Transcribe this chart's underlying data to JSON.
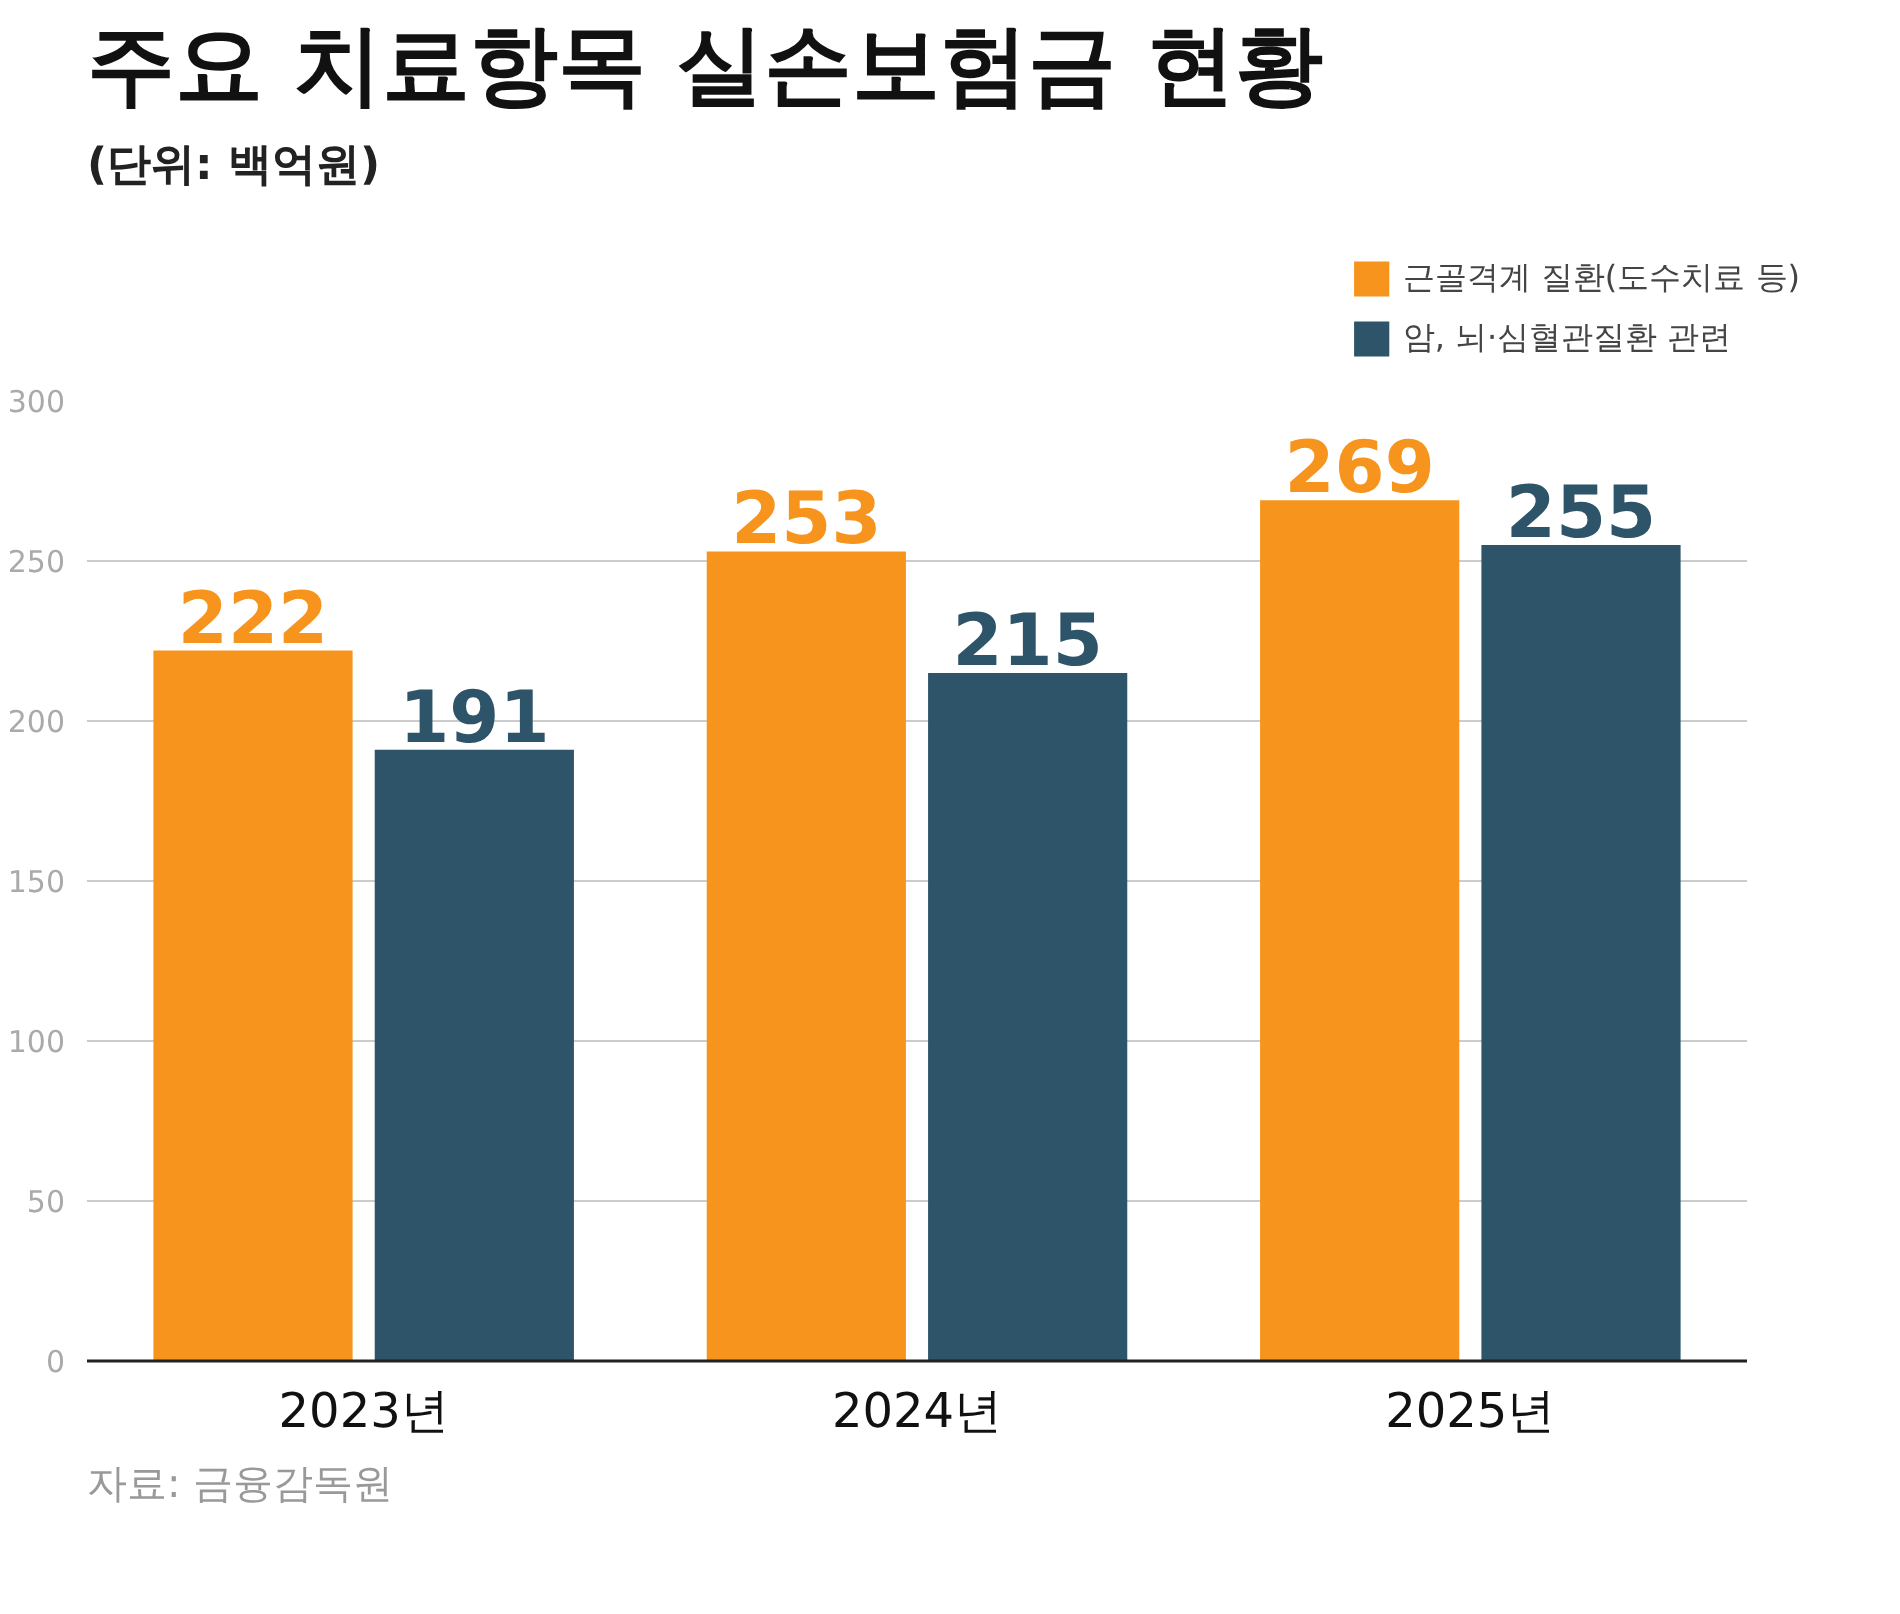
{
  "chart_data": {
    "type": "bar",
    "title": "주요 치료항목 실손보험금 현황",
    "subtitle": "(단위: 백억원)",
    "categories": [
      "2023년",
      "2024년",
      "2025년"
    ],
    "series": [
      {
        "name": "근골격계 질환(도수치료 등)",
        "color": "#f7941d",
        "values": [
          222,
          253,
          269
        ]
      },
      {
        "name": "암, 뇌·심혈관질환 관련",
        "color": "#2d5469",
        "values": [
          191,
          215,
          255
        ]
      }
    ],
    "ylim": [
      0,
      300
    ],
    "yticks": [
      0,
      50,
      100,
      150,
      200,
      250,
      300
    ],
    "grid": "y",
    "legend": "top right",
    "data_labels": true,
    "annotations": [
      "자료: 금융감독원"
    ]
  }
}
